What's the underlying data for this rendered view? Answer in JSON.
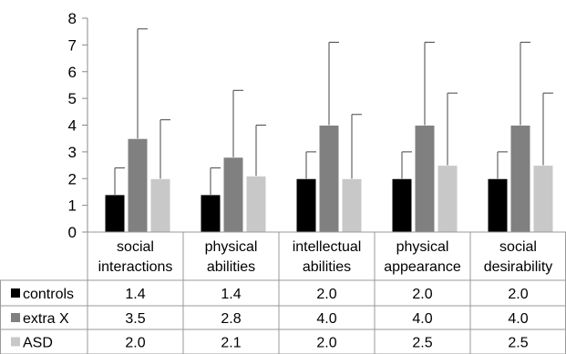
{
  "chart_data": {
    "type": "bar",
    "categories": [
      [
        "social",
        "interactions"
      ],
      [
        "physical",
        "abilities"
      ],
      [
        "intellectual",
        "abilities"
      ],
      [
        "physical",
        "appearance"
      ],
      [
        "social",
        "desirability"
      ]
    ],
    "series": [
      {
        "name": "controls",
        "color": "#000000",
        "values": [
          1.4,
          1.4,
          2.0,
          2.0,
          2.0
        ],
        "error_upper": [
          2.4,
          2.4,
          3.0,
          3.0,
          3.0
        ],
        "table_values": [
          "1.4",
          "1.4",
          "2.0",
          "2.0",
          "2.0"
        ]
      },
      {
        "name": "extra X",
        "color": "#808080",
        "values": [
          3.5,
          2.8,
          4.0,
          4.0,
          4.0
        ],
        "error_upper": [
          7.6,
          5.3,
          7.1,
          7.1,
          7.1
        ],
        "table_values": [
          "3.5",
          "2.8",
          "4.0",
          "4.0",
          "4.0"
        ]
      },
      {
        "name": "ASD",
        "color": "#c8c8c8",
        "values": [
          2.0,
          2.1,
          2.0,
          2.5,
          2.5
        ],
        "error_upper": [
          4.2,
          4.0,
          4.4,
          5.2,
          5.2
        ],
        "table_values": [
          "2.0",
          "2.1",
          "2.0",
          "2.5",
          "2.5"
        ]
      }
    ],
    "ylim": [
      0,
      8
    ],
    "yticks": [
      "0",
      "1",
      "2",
      "3",
      "4",
      "5",
      "6",
      "7",
      "8"
    ],
    "grid": false,
    "legend": "data table rows at bottom-left"
  }
}
